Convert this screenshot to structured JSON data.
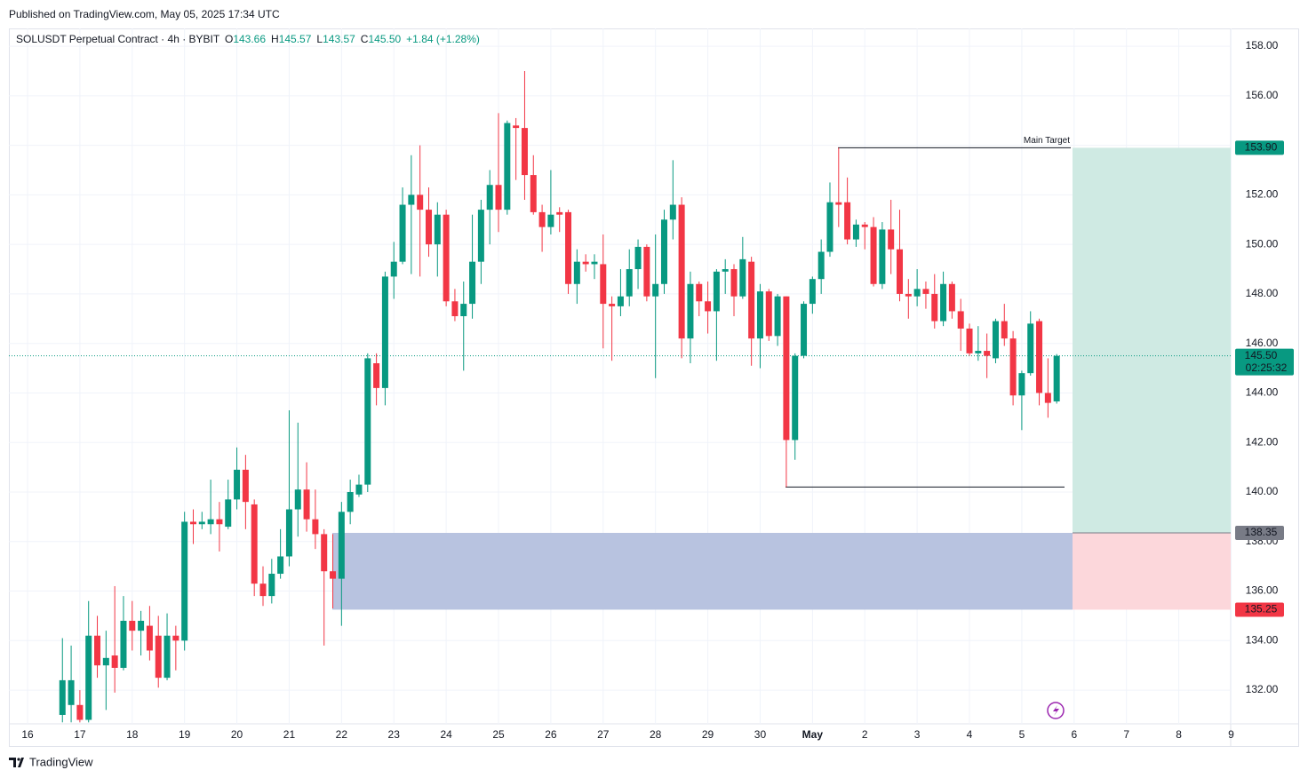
{
  "header": {
    "published": "Published on TradingView.com, May 05, 2025 17:34 UTC"
  },
  "chart_data": {
    "type": "candlestick",
    "title": "SOLUSDT Perpetual Contract · 4h · BYBIT",
    "legend_items": [
      {
        "key": "O",
        "value": "143.66"
      },
      {
        "key": "H",
        "value": "145.57"
      },
      {
        "key": "L",
        "value": "143.57"
      },
      {
        "key": "C",
        "value": "145.50"
      }
    ],
    "change": "+1.84 (+1.28%)",
    "categories": [
      "16",
      null,
      null,
      null,
      null,
      null,
      "17",
      null,
      null,
      null,
      null,
      null,
      "18",
      null,
      null,
      null,
      null,
      null,
      "19",
      null,
      null,
      null,
      null,
      null,
      "20",
      null,
      null,
      null,
      null,
      null,
      "21",
      null,
      null,
      null,
      null,
      null,
      "22",
      null,
      null,
      null,
      null,
      null,
      "23",
      null,
      null,
      null,
      null,
      null,
      "24",
      null,
      null,
      null,
      null,
      null,
      "25",
      null,
      null,
      null,
      null,
      null,
      "26",
      null,
      null,
      null,
      null,
      null,
      "27",
      null,
      null,
      null,
      null,
      null,
      "28",
      null,
      null,
      null,
      null,
      null,
      "29",
      null,
      null,
      null,
      null,
      null,
      "30",
      null,
      null,
      null,
      null,
      null,
      "May",
      null,
      null,
      null,
      null,
      null,
      "2",
      null,
      null,
      null,
      null,
      null,
      "3",
      null,
      null,
      null,
      null,
      null,
      "4",
      null,
      null,
      null,
      null,
      null,
      "5",
      null,
      null,
      null,
      null,
      null,
      "6",
      null,
      null,
      null,
      null,
      null,
      "7",
      null,
      null,
      null,
      null,
      null,
      "8",
      null,
      null,
      null,
      null,
      null,
      "9"
    ],
    "open": [
      null,
      null,
      null,
      null,
      131.0,
      131.4,
      131.4,
      130.8,
      134.2,
      133.0,
      133.4,
      132.9,
      134.8,
      134.4,
      134.6,
      134.2,
      132.5,
      134.2,
      134.0,
      138.8,
      138.7,
      138.7,
      138.9,
      138.6,
      139.7,
      140.9,
      139.5,
      136.3,
      135.8,
      136.7,
      137.4,
      139.3,
      140.1,
      138.9,
      138.3,
      136.8,
      136.5,
      139.2,
      139.9,
      140.3,
      145.2,
      144.2,
      148.7,
      149.3,
      151.6,
      152.0,
      151.4,
      150.0,
      151.2,
      147.7,
      147.1,
      147.6,
      149.3,
      151.4,
      152.4,
      151.4,
      154.8,
      154.7,
      152.8,
      151.3,
      150.7,
      151.3,
      151.3,
      148.4,
      149.3,
      149.2,
      149.2,
      147.6,
      147.5,
      147.9,
      149.0,
      149.9,
      147.9,
      148.4,
      151.0,
      151.6,
      146.2,
      148.4,
      147.7,
      147.3,
      148.9,
      149.0,
      147.9,
      149.3,
      146.2,
      148.1,
      146.3,
      147.9,
      142.1,
      145.5,
      147.6,
      148.6,
      149.7,
      151.7,
      151.7,
      150.2,
      150.8,
      150.7,
      148.4,
      150.6,
      149.8,
      148.0,
      147.9,
      148.2,
      148.0,
      146.9,
      148.4,
      147.3,
      146.6,
      145.6,
      145.7,
      145.4,
      146.9,
      146.2,
      143.9,
      144.8,
      146.9,
      144.0,
      143.66,
      null,
      null,
      null,
      null,
      null,
      null,
      null,
      null,
      null,
      null,
      null,
      null,
      null,
      null,
      null,
      null,
      null,
      null,
      null,
      null
    ],
    "high": [
      null,
      null,
      null,
      null,
      134.1,
      133.8,
      132.0,
      135.6,
      135.0,
      134.4,
      136.2,
      135.8,
      135.6,
      135.2,
      135.4,
      135.0,
      135.1,
      134.6,
      139.2,
      139.3,
      139.2,
      140.5,
      139.6,
      140.5,
      141.8,
      141.5,
      139.7,
      137.0,
      137.3,
      138.5,
      143.3,
      142.8,
      141.2,
      140.1,
      138.5,
      138.3,
      139.6,
      140.5,
      140.7,
      145.6,
      145.6,
      148.9,
      150.1,
      152.3,
      153.6,
      154.0,
      152.3,
      151.7,
      151.4,
      148.2,
      148.5,
      151.2,
      151.8,
      153.0,
      155.3,
      155.0,
      155.1,
      157.0,
      153.6,
      151.6,
      153.0,
      151.5,
      151.4,
      149.8,
      149.6,
      149.6,
      150.4,
      147.9,
      149.0,
      149.8,
      150.2,
      150.0,
      150.4,
      151.4,
      153.4,
      151.9,
      148.9,
      148.5,
      148.5,
      149.0,
      149.4,
      149.2,
      150.3,
      149.5,
      148.4,
      148.2,
      148.0,
      147.9,
      145.6,
      147.7,
      148.7,
      150.2,
      152.5,
      153.9,
      152.7,
      151.0,
      150.9,
      151.1,
      150.9,
      151.8,
      151.4,
      148.6,
      149.0,
      148.5,
      148.8,
      148.9,
      148.5,
      147.8,
      146.8,
      146.7,
      146.4,
      147.0,
      147.6,
      146.5,
      144.9,
      147.3,
      147.0,
      145.4,
      145.57,
      null,
      null,
      null,
      null,
      null,
      null,
      null,
      null,
      null,
      null,
      null,
      null,
      null,
      null,
      null,
      null,
      null,
      null,
      null,
      null
    ],
    "low": [
      null,
      null,
      null,
      null,
      130.7,
      130.7,
      130.7,
      130.7,
      132.5,
      131.2,
      131.9,
      132.8,
      133.6,
      133.4,
      133.2,
      132.1,
      132.4,
      132.8,
      133.6,
      137.9,
      138.5,
      138.3,
      137.6,
      138.5,
      139.3,
      138.5,
      135.8,
      135.4,
      135.5,
      136.5,
      137.0,
      138.2,
      138.4,
      137.7,
      133.8,
      135.3,
      134.6,
      138.7,
      139.8,
      140.0,
      143.5,
      143.5,
      147.8,
      149.2,
      148.8,
      148.7,
      149.5,
      148.7,
      147.5,
      146.9,
      144.9,
      147.0,
      148.4,
      150.0,
      150.5,
      151.2,
      152.6,
      151.8,
      151.2,
      149.7,
      150.4,
      150.5,
      148.0,
      147.6,
      148.9,
      148.6,
      145.8,
      145.3,
      147.1,
      147.5,
      148.2,
      147.7,
      144.6,
      148.0,
      150.2,
      145.4,
      145.2,
      147.1,
      146.4,
      145.3,
      148.0,
      147.1,
      147.8,
      145.1,
      145.0,
      146.1,
      145.9,
      140.2,
      141.3,
      145.4,
      147.2,
      148.0,
      149.5,
      150.7,
      150.0,
      149.9,
      149.8,
      148.3,
      148.2,
      148.8,
      147.7,
      147.0,
      147.5,
      147.4,
      146.6,
      146.7,
      147.0,
      145.7,
      145.5,
      145.3,
      144.6,
      145.2,
      145.9,
      143.5,
      142.5,
      144.7,
      143.5,
      143.0,
      143.57,
      null,
      null,
      null,
      null,
      null,
      null,
      null,
      null,
      null,
      null,
      null,
      null,
      null,
      null,
      null,
      null,
      null,
      null,
      null,
      null
    ],
    "close": [
      null,
      null,
      null,
      null,
      132.4,
      132.4,
      130.8,
      134.2,
      133.0,
      133.3,
      132.9,
      134.8,
      134.4,
      134.8,
      133.6,
      132.5,
      134.2,
      134.0,
      138.8,
      138.7,
      138.8,
      138.9,
      138.7,
      139.7,
      140.9,
      139.6,
      136.3,
      135.8,
      136.7,
      137.4,
      139.3,
      140.1,
      138.9,
      138.3,
      136.8,
      136.5,
      139.2,
      140.0,
      140.3,
      145.4,
      144.2,
      148.7,
      149.3,
      151.6,
      152.0,
      151.4,
      150.0,
      151.2,
      147.7,
      147.1,
      147.6,
      149.3,
      151.4,
      152.4,
      151.4,
      154.9,
      154.7,
      152.8,
      151.3,
      150.7,
      151.2,
      151.2,
      148.4,
      149.3,
      149.2,
      149.3,
      147.6,
      147.5,
      147.9,
      149.0,
      149.9,
      147.9,
      148.4,
      151.0,
      151.6,
      146.2,
      148.4,
      147.7,
      147.3,
      148.9,
      149.0,
      147.9,
      149.4,
      146.2,
      148.1,
      146.3,
      147.9,
      142.1,
      145.5,
      147.6,
      148.6,
      149.7,
      151.7,
      151.6,
      150.2,
      150.8,
      150.7,
      148.4,
      150.6,
      149.8,
      148.0,
      147.9,
      148.2,
      148.0,
      146.9,
      148.4,
      147.3,
      146.6,
      145.6,
      145.7,
      145.5,
      146.9,
      146.2,
      143.9,
      144.8,
      146.8,
      144.0,
      143.6,
      145.5,
      null,
      null,
      null,
      null,
      null,
      null,
      null,
      null,
      null,
      null,
      null,
      null,
      null,
      null,
      null,
      null,
      null,
      null,
      null,
      null
    ],
    "up_color": "#089981",
    "down_color": "#f23645",
    "ylim": [
      130.64,
      158.72
    ],
    "yticks": [
      {
        "value": 132,
        "label": "132.00"
      },
      {
        "value": 134,
        "label": "134.00"
      },
      {
        "value": 136,
        "label": "136.00"
      },
      {
        "value": 138,
        "label": "138.00"
      },
      {
        "value": 140,
        "label": "140.00"
      },
      {
        "value": 142,
        "label": "142.00"
      },
      {
        "value": 144,
        "label": "144.00"
      },
      {
        "value": 146,
        "label": "146.00"
      },
      {
        "value": 148,
        "label": "148.00"
      },
      {
        "value": 150,
        "label": "150.00"
      },
      {
        "value": 152,
        "label": "152.00"
      },
      {
        "value": 154,
        "label": "154.00"
      },
      {
        "value": 156,
        "label": "156.00"
      },
      {
        "value": 158,
        "label": "158.00"
      }
    ],
    "grid": true,
    "current_price": {
      "value": 145.5,
      "label": "145.50",
      "countdown": "02:25:32"
    },
    "annotations": {
      "target": {
        "text": "Main Target",
        "value": 153.9,
        "label": "153.90"
      },
      "low_line": {
        "value": 140.2
      },
      "zone": {
        "top": 138.35,
        "top_label": "138.35",
        "bottom": 135.25,
        "bottom_label": "135.25"
      }
    }
  },
  "footer": {
    "brand": "TradingView"
  }
}
